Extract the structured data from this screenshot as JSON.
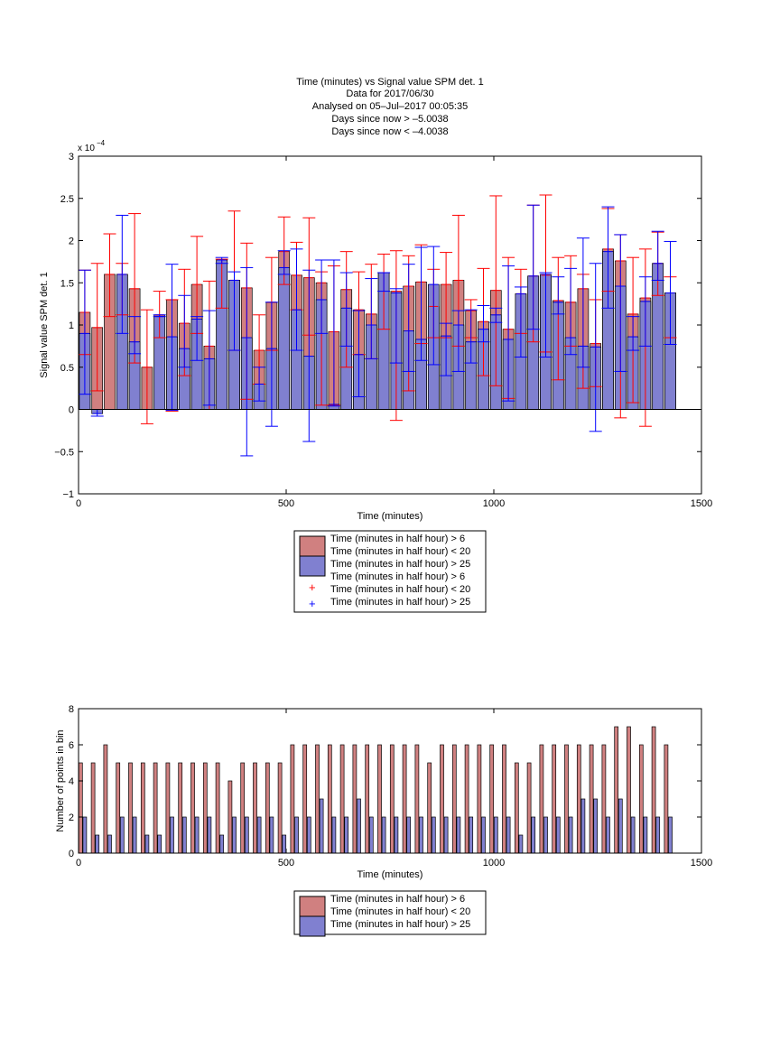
{
  "chart_data": [
    {
      "type": "bar",
      "title_lines": [
        "Time (minutes) vs Signal value SPM det. 1",
        "Data for 2017/06/30",
        "Analysed on 05–Jul–2017 00:05:35",
        "Days since now > –5.0038",
        "Days since now < –4.0038"
      ],
      "xlabel": "Time (minutes)",
      "ylabel": "Signal value SPM det. 1",
      "y_exponent_label": "x 10",
      "y_exponent": "−4",
      "xlim": [
        0,
        1500
      ],
      "ylim": [
        -1,
        3
      ],
      "x_ticks": [
        "0",
        "500",
        "1000",
        "1500"
      ],
      "y_ticks": [
        "−1",
        "−0.5",
        "0",
        "0.5",
        "1",
        "1.5",
        "2",
        "2.5",
        "3"
      ],
      "grid": false,
      "legend_position": "below",
      "legend": [
        "Time (minutes in half hour) > 6",
        "Time (minutes in half hour) < 20",
        "Time (minutes in half hour) > 25",
        "Time (minutes in half hour) > 6",
        "Time (minutes in half hour) < 20",
        "Time (minutes in half hour) > 25"
      ],
      "series": [
        {
          "color": "#d08080",
          "error_color": "#ff0000",
          "x": [
            15,
            75,
            135,
            195,
            255,
            315,
            375,
            435,
            495,
            555,
            615,
            675,
            735,
            795,
            855,
            915,
            975,
            1035,
            1095,
            1155,
            1215,
            1275,
            1335,
            1395
          ],
          "values": [
            1.15,
            1.6,
            1.43,
            1.12,
            1.02,
            0.75,
            1.53,
            0.7,
            1.87,
            1.56,
            0.92,
            1.18,
            1.62,
            1.46,
            1.22,
            1.53,
            1.04,
            0.95,
            1.58,
            1.29,
            1.43,
            1.9,
            1.13,
            1.73
          ],
          "err_low": [
            0.65,
            1.1,
            0.55,
            0.85,
            0.4,
            0.0,
            0.7,
            0.3,
            1.48,
            0.88,
            0.05,
            0.65,
            0.95,
            0.22,
            0.85,
            0.75,
            0.4,
            0.13,
            0.8,
            0.35,
            0.25,
            1.4,
            0.08,
            1.35
          ],
          "err_high": [
            1.65,
            2.08,
            2.32,
            1.4,
            1.66,
            1.52,
            2.35,
            1.12,
            2.28,
            2.27,
            1.7,
            1.63,
            1.84,
            1.82,
            1.66,
            2.3,
            1.67,
            1.8,
            2.42,
            1.8,
            1.6,
            2.38,
            1.8,
            2.1
          ]
        },
        {
          "color": "#d08080",
          "error_color": "#ff0000",
          "x": [
            45,
            105,
            165,
            225,
            285,
            345,
            405,
            465,
            525,
            585,
            645,
            705,
            765,
            825,
            885,
            945,
            1005,
            1065,
            1125,
            1185,
            1245,
            1305,
            1365,
            1425
          ],
          "values": [
            0.97,
            1.6,
            0.5,
            1.3,
            1.48,
            1.77,
            1.44,
            1.27,
            1.59,
            1.5,
            1.42,
            1.13,
            1.4,
            1.51,
            1.48,
            1.17,
            1.41,
            1.37,
            1.59,
            1.27,
            0.78,
            1.76,
            1.32,
            1.38
          ],
          "err_low": [
            0.22,
            1.12,
            -0.17,
            -0.02,
            0.9,
            1.2,
            0.12,
            0.7,
            1.18,
            0.05,
            0.5,
            0.6,
            -0.13,
            0.78,
            0.85,
            0.85,
            0.28,
            0.9,
            0.68,
            0.75,
            0.27,
            -0.1,
            -0.2,
            0.85
          ],
          "err_high": [
            1.73,
            1.73,
            1.18,
            1.3,
            2.05,
            1.78,
            1.97,
            1.8,
            1.98,
            1.63,
            1.87,
            1.72,
            1.88,
            1.95,
            1.86,
            1.3,
            2.53,
            1.66,
            2.54,
            1.82,
            1.3,
            2.07,
            1.9,
            1.57
          ]
        },
        {
          "color": "#8080d0",
          "error_color": "#0000ff",
          "x": [
            15,
            45,
            105,
            135,
            195,
            225,
            255,
            285,
            315,
            345,
            375,
            405,
            435,
            465,
            495,
            525,
            555,
            585,
            615,
            645,
            675,
            705,
            735,
            765,
            795,
            825,
            855,
            885,
            915,
            945,
            975,
            1005,
            1035,
            1065,
            1095,
            1125,
            1155,
            1185,
            1215,
            1245,
            1275,
            1305,
            1335,
            1365,
            1395,
            1425
          ],
          "values": [
            0.9,
            -0.05,
            1.6,
            0.8,
            1.1,
            0.86,
            0.72,
            1.07,
            0.6,
            1.77,
            1.53,
            0.85,
            0.3,
            0.72,
            1.68,
            1.18,
            0.63,
            1.3,
            0.06,
            1.2,
            0.65,
            1.0,
            1.62,
            1.38,
            0.93,
            0.83,
            1.48,
            0.87,
            1.0,
            0.8,
            0.95,
            1.12,
            0.83,
            1.37,
            1.58,
            1.6,
            1.27,
            0.85,
            0.75,
            0.74,
            1.87,
            1.46,
            0.86,
            1.28,
            1.73,
            1.38
          ],
          "err_low": [
            0.18,
            -0.08,
            0.9,
            0.66,
            1.1,
            -0.01,
            0.5,
            0.58,
            0.05,
            1.73,
            0.7,
            -0.55,
            0.1,
            -0.2,
            1.6,
            0.7,
            -0.38,
            0.9,
            0.04,
            0.75,
            0.15,
            0.6,
            1.4,
            0.55,
            0.45,
            0.58,
            0.53,
            0.4,
            0.45,
            0.55,
            0.8,
            1.03,
            0.1,
            0.62,
            0.95,
            0.62,
            1.13,
            0.65,
            0.5,
            -0.26,
            1.2,
            0.45,
            0.7,
            0.75,
            1.53,
            0.77
          ],
          "err_high": [
            1.65,
            0.0,
            2.3,
            1.1,
            1.12,
            1.72,
            1.35,
            1.1,
            1.17,
            1.8,
            1.63,
            1.68,
            0.5,
            1.27,
            1.88,
            1.9,
            1.65,
            1.77,
            1.77,
            1.62,
            1.17,
            1.55,
            1.62,
            1.43,
            1.72,
            1.92,
            1.93,
            1.02,
            1.17,
            1.18,
            1.23,
            1.2,
            1.7,
            1.45,
            2.42,
            1.62,
            1.57,
            1.67,
            2.03,
            1.73,
            2.4,
            2.07,
            1.1,
            1.57,
            2.11,
            1.99
          ]
        }
      ]
    },
    {
      "type": "bar",
      "xlabel": "Time (minutes)",
      "ylabel": "Number of points in bin",
      "xlim": [
        0,
        1500
      ],
      "ylim": [
        0,
        8
      ],
      "x_ticks": [
        "0",
        "500",
        "1000",
        "1500"
      ],
      "y_ticks": [
        "0",
        "2",
        "4",
        "6",
        "8"
      ],
      "grid": false,
      "legend_position": "below",
      "legend": [
        "Time (minutes in half hour) > 6",
        "Time (minutes in half hour) < 20",
        "Time (minutes in half hour) > 25"
      ],
      "series": [
        {
          "color": "#d08080",
          "x": [
            5,
            35,
            65,
            95,
            125,
            155,
            185,
            215,
            245,
            275,
            305,
            335,
            365,
            395,
            425,
            455,
            485,
            515,
            545,
            575,
            605,
            635,
            665,
            695,
            725,
            755,
            785,
            815,
            845,
            875,
            905,
            935,
            965,
            995,
            1025,
            1055,
            1085,
            1115,
            1145,
            1175,
            1205,
            1235,
            1265,
            1295,
            1325,
            1355,
            1385,
            1415
          ],
          "values": [
            5,
            5,
            6,
            5,
            5,
            5,
            5,
            5,
            5,
            5,
            5,
            5,
            4,
            5,
            5,
            5,
            5,
            6,
            6,
            6,
            6,
            6,
            6,
            6,
            6,
            6,
            6,
            6,
            5,
            6,
            6,
            6,
            6,
            6,
            6,
            5,
            5,
            6,
            6,
            6,
            6,
            6,
            6,
            7,
            7,
            6,
            7,
            6
          ]
        },
        {
          "color": "#8080d0",
          "x": [
            15,
            45,
            75,
            105,
            135,
            165,
            195,
            225,
            255,
            285,
            315,
            345,
            375,
            405,
            435,
            465,
            495,
            525,
            555,
            585,
            615,
            645,
            675,
            705,
            735,
            765,
            795,
            825,
            855,
            885,
            915,
            945,
            975,
            1005,
            1035,
            1065,
            1095,
            1125,
            1155,
            1185,
            1215,
            1245,
            1275,
            1305,
            1335,
            1365,
            1395,
            1425
          ],
          "values": [
            2,
            1,
            1,
            2,
            2,
            1,
            1,
            2,
            2,
            2,
            2,
            1,
            2,
            2,
            2,
            2,
            1,
            2,
            2,
            3,
            2,
            2,
            3,
            2,
            2,
            2,
            2,
            2,
            2,
            2,
            2,
            2,
            2,
            2,
            2,
            1,
            2,
            2,
            2,
            2,
            3,
            3,
            2,
            3,
            2,
            2,
            2,
            2
          ]
        }
      ]
    }
  ]
}
